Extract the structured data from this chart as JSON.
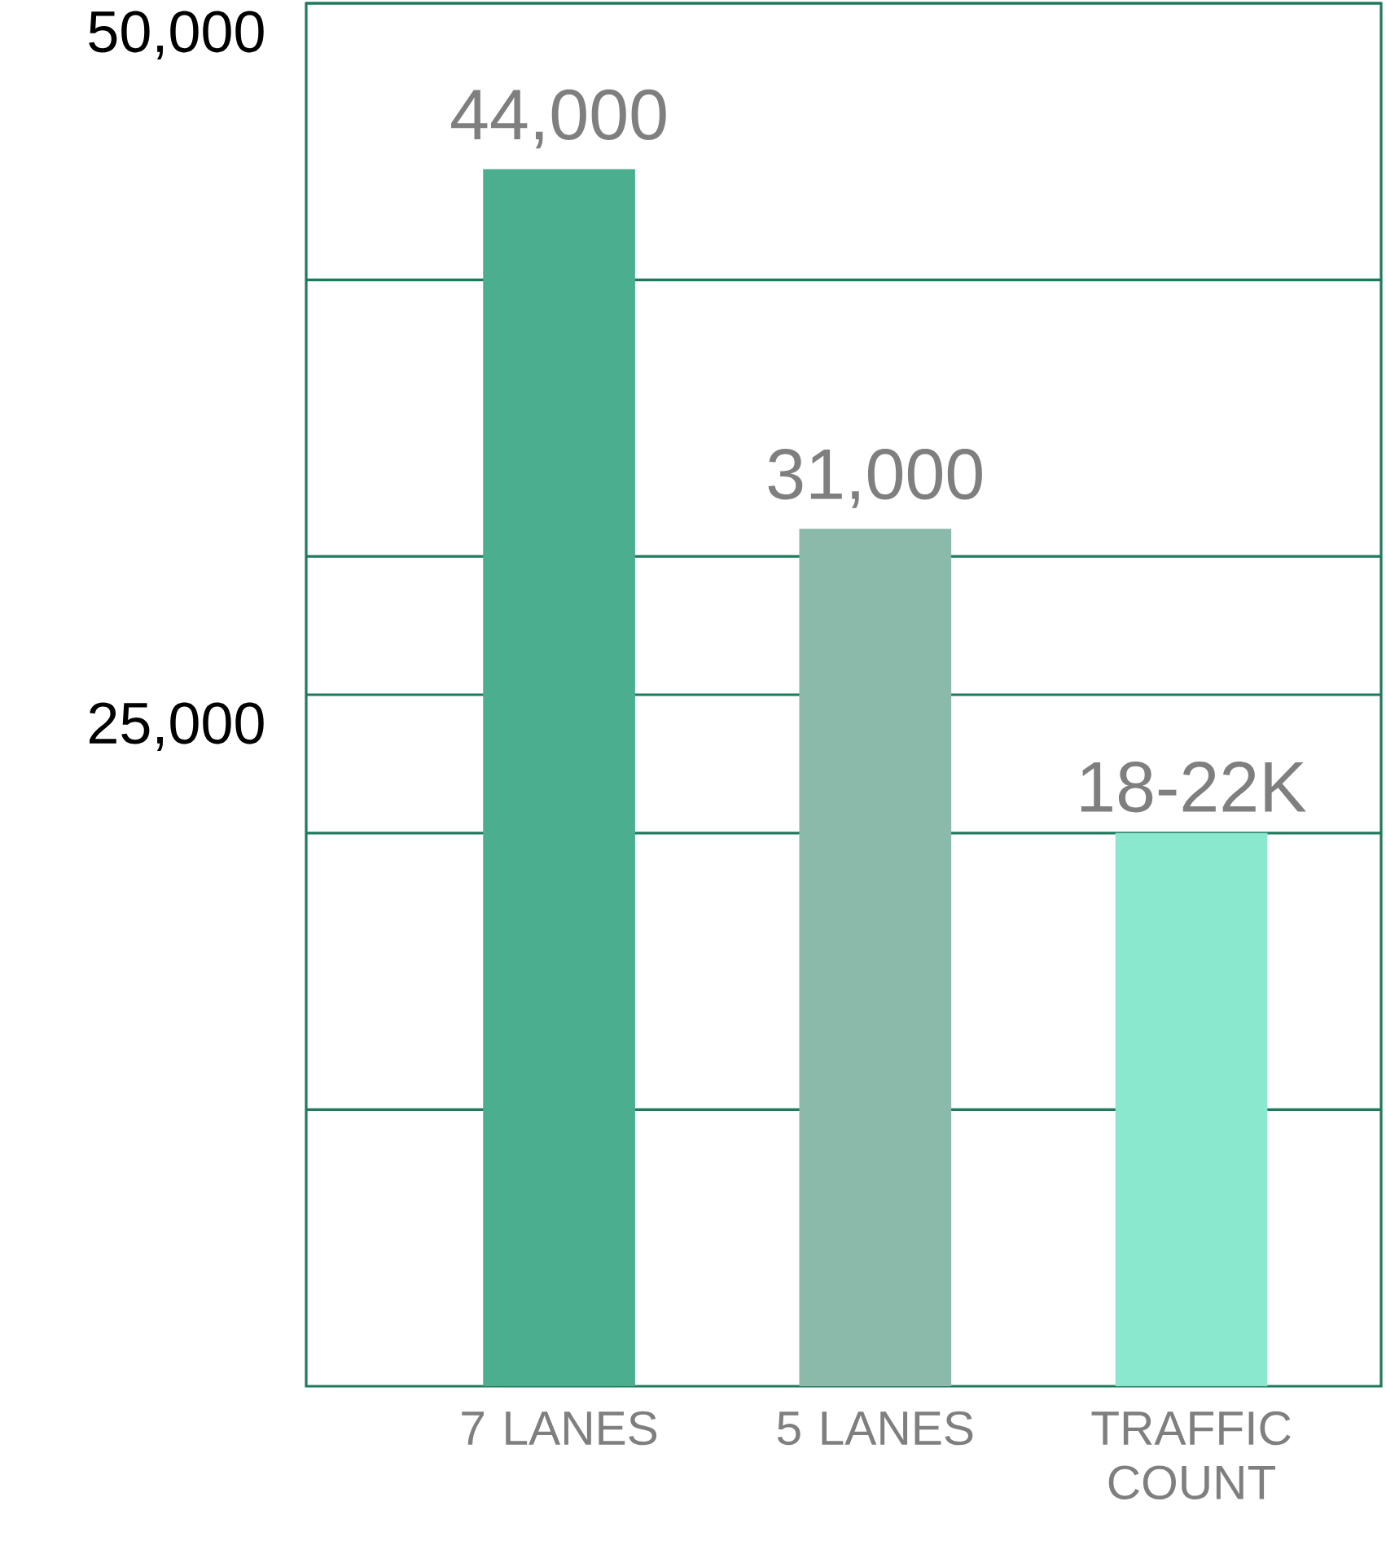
{
  "chart_data": {
    "type": "bar",
    "categories": [
      "7 LANES",
      "5 LANES",
      "TRAFFIC COUNT"
    ],
    "values": [
      44000,
      31000,
      20000
    ],
    "colors": [
      "#4aae8f",
      "#8bb9aa",
      "#8ae8cf"
    ],
    "value_labels": [
      "44,000",
      "31,000",
      "18-22K"
    ],
    "ylim": [
      0,
      50000
    ],
    "yticks": [
      {
        "value": 10000,
        "label": null
      },
      {
        "value": 20000,
        "label": null
      },
      {
        "value": 25000,
        "label": "25,000"
      },
      {
        "value": 30000,
        "label": null
      },
      {
        "value": 40000,
        "label": null
      },
      {
        "value": 50000,
        "label": "50,000"
      }
    ],
    "grid": "y"
  }
}
